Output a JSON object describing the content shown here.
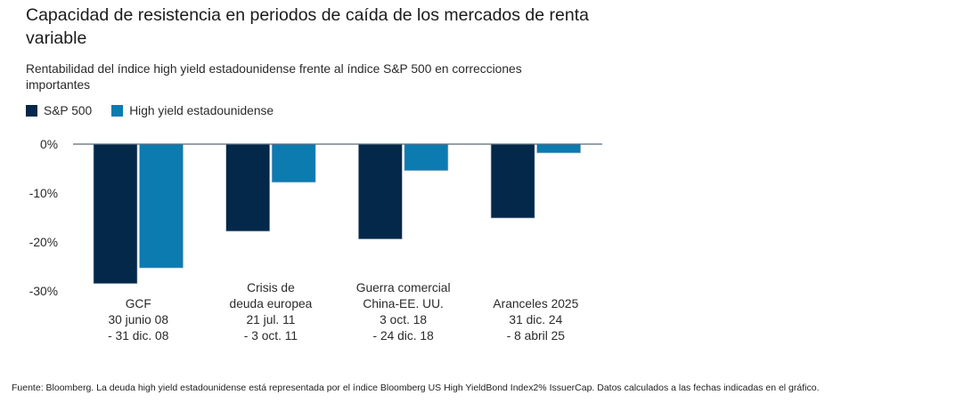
{
  "chart_data": {
    "type": "bar",
    "title": "Capacidad de resistencia en periodos de caída de los mercados de renta variable",
    "subtitle": "Rentabilidad del índice high yield estadounidense frente al índice S&P 500 en correcciones importantes",
    "xlabel": "",
    "ylabel": "",
    "ylim": [
      -30,
      0
    ],
    "yticks": [
      0,
      -10,
      -20,
      -30
    ],
    "ytick_labels": [
      "0%",
      "-10%",
      "-20%",
      "-30%"
    ],
    "grid": false,
    "legend_position": "top-left",
    "categories": [
      [
        "GCF",
        "30 junio 08",
        "- 31 dic. 08"
      ],
      [
        "Crisis de",
        "deuda europea",
        "21 jul. 11",
        "- 3 oct. 11"
      ],
      [
        "Guerra comercial",
        "China-EE. UU.",
        "3 oct. 18",
        "- 24 dic. 18"
      ],
      [
        "Aranceles 2025",
        "31 dic. 24",
        "- 8 abril 25"
      ]
    ],
    "series": [
      {
        "name": "S&P 500",
        "color": "#03284a",
        "values": [
          -28.5,
          -17.8,
          -19.4,
          -15.1
        ]
      },
      {
        "name": "High yield estadounidense",
        "color": "#0c7bb0",
        "values": [
          -25.3,
          -7.8,
          -5.4,
          -1.8
        ]
      }
    ]
  },
  "source": "Fuente: Bloomberg. La deuda high yield estadounidense está representada por el índice Bloomberg US High YieldBond Index2% IssuerCap. Datos calculados a las fechas indicadas en el gráfico."
}
